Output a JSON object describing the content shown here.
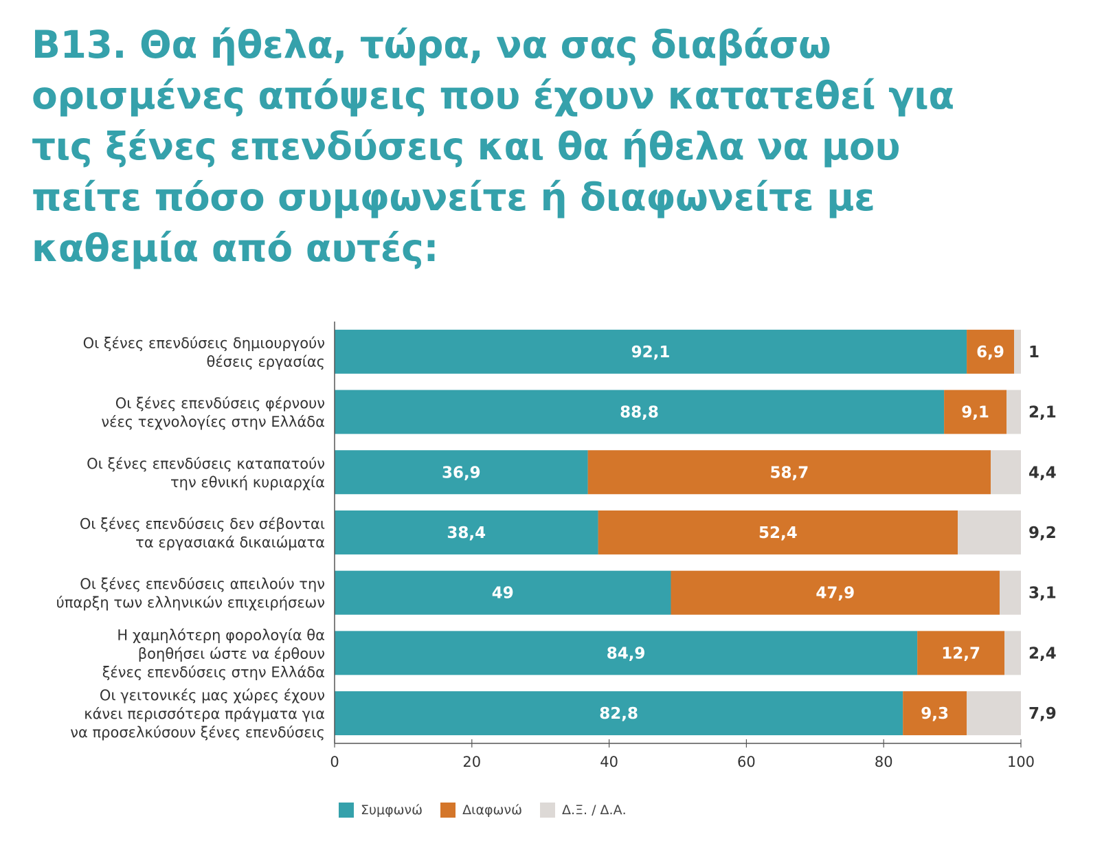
{
  "title_lines": [
    "B13. Θα ήθελα, τώρα, να σας διαβάσω",
    "ορισμένες απόψεις που έχουν κατατεθεί για",
    "τις ξένες επενδύσεις και θα ήθελα να μου",
    "πείτε πόσο συμφωνείτε ή διαφωνείτε με",
    "καθεμία από αυτές:"
  ],
  "colors": {
    "title": "#35a1ab",
    "agree": "#35a1ab",
    "disagree": "#d4762a",
    "dk": "#ddd9d6",
    "axis": "#555555",
    "label_text": "#333333",
    "value_text": "#ffffff",
    "outside_value_text": "#333333"
  },
  "chart_data": {
    "type": "bar",
    "orientation": "horizontal",
    "stacked": true,
    "categories": [
      [
        "Οι ξένες επενδύσεις δημιουργούν",
        "θέσεις εργασίας"
      ],
      [
        "Οι ξένες επενδύσεις φέρνουν",
        "νέες τεχνολογίες στην Ελλάδα"
      ],
      [
        "Οι ξένες επενδύσεις καταπατούν",
        "την εθνική κυριαρχία"
      ],
      [
        "Οι ξένες επενδύσεις δεν σέβονται",
        "τα εργασιακά δικαιώματα"
      ],
      [
        "Οι ξένες επενδύσεις απειλούν την",
        "ύπαρξη των ελληνικών επιχειρήσεων"
      ],
      [
        "Η χαμηλότερη φορολογία θα",
        "βοηθήσει ώστε να έρθουν",
        "ξένες επενδύσεις στην Ελλάδα"
      ],
      [
        "Οι γειτονικές μας χώρες έχουν",
        "κάνει περισσότερα πράγματα για",
        "να προσελκύσουν ξένες επενδύσεις"
      ]
    ],
    "series": [
      {
        "name": "Συμφωνώ",
        "values": [
          92.1,
          88.8,
          36.9,
          38.4,
          49,
          84.9,
          82.8
        ],
        "labels": [
          "92,1",
          "88,8",
          "36,9",
          "38,4",
          "49",
          "84,9",
          "82,8"
        ]
      },
      {
        "name": "Διαφωνώ",
        "values": [
          6.9,
          9.1,
          58.7,
          52.4,
          47.9,
          12.7,
          9.3
        ],
        "labels": [
          "6,9",
          "9,1",
          "58,7",
          "52,4",
          "47,9",
          "12,7",
          "9,3"
        ]
      },
      {
        "name": "Δ.Ξ. / Δ.Α.",
        "values": [
          1,
          2.1,
          4.4,
          9.2,
          3.1,
          2.4,
          7.9
        ],
        "labels": [
          "1",
          "2,1",
          "4,4",
          "9,2",
          "3,1",
          "2,4",
          "7,9"
        ]
      }
    ],
    "xlim": [
      0,
      100
    ],
    "xticks": [
      "0",
      "20",
      "40",
      "60",
      "80",
      "100"
    ],
    "legend_position": "bottom-left"
  }
}
